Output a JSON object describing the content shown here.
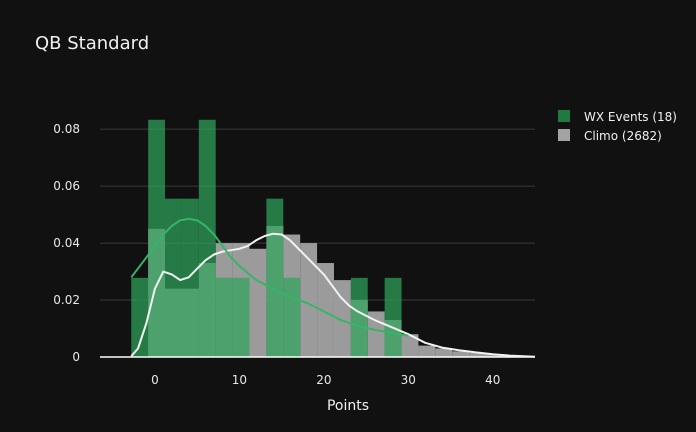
{
  "chart_data": {
    "type": "bar",
    "title": "QB Standard",
    "xlabel": "Points",
    "ylabel": "",
    "xlim": [
      -6.5,
      45
    ],
    "ylim": [
      0,
      0.092
    ],
    "xticks": [
      0,
      10,
      20,
      30,
      40
    ],
    "yticks": [
      0,
      0.02,
      0.04,
      0.06,
      0.08
    ],
    "ytick_labels": [
      "0",
      "0.02",
      "0.04",
      "0.06",
      "0.08"
    ],
    "grid": true,
    "legend_position": "top-right",
    "series": [
      {
        "name": "WX Events (18)",
        "kind": "histogram",
        "color": "#2fa35a",
        "bins": [
          {
            "x0": -2.8,
            "x1": -0.8,
            "y": 0.0278
          },
          {
            "x0": -0.8,
            "x1": 1.2,
            "y": 0.0833
          },
          {
            "x0": 1.2,
            "x1": 3.2,
            "y": 0.0556
          },
          {
            "x0": 3.2,
            "x1": 5.2,
            "y": 0.0556
          },
          {
            "x0": 5.2,
            "x1": 7.2,
            "y": 0.0833
          },
          {
            "x0": 7.2,
            "x1": 9.2,
            "y": 0.0278
          },
          {
            "x0": 9.2,
            "x1": 11.2,
            "y": 0.0278
          },
          {
            "x0": 13.2,
            "x1": 15.2,
            "y": 0.0556
          },
          {
            "x0": 15.2,
            "x1": 17.2,
            "y": 0.0278
          },
          {
            "x0": 23.2,
            "x1": 25.2,
            "y": 0.0278
          },
          {
            "x0": 27.2,
            "x1": 29.2,
            "y": 0.0278
          }
        ],
        "kde": {
          "x": [
            -2.8,
            -1,
            0,
            1,
            2,
            3,
            4,
            5,
            6,
            7,
            8,
            9,
            10,
            12,
            14,
            16,
            18,
            20,
            22,
            24,
            26,
            28,
            30
          ],
          "y": [
            0.028,
            0.035,
            0.039,
            0.043,
            0.046,
            0.048,
            0.0485,
            0.048,
            0.046,
            0.043,
            0.039,
            0.035,
            0.032,
            0.027,
            0.024,
            0.021,
            0.019,
            0.016,
            0.013,
            0.011,
            0.0095,
            0.0085,
            0.0075
          ]
        }
      },
      {
        "name": "Climo (2682)",
        "kind": "histogram",
        "color": "#9e9e9e",
        "bins": [
          {
            "x0": -2.8,
            "x1": -0.8,
            "y": 0.0
          },
          {
            "x0": -0.8,
            "x1": 1.2,
            "y": 0.045
          },
          {
            "x0": 1.2,
            "x1": 3.2,
            "y": 0.024
          },
          {
            "x0": 3.2,
            "x1": 5.2,
            "y": 0.024
          },
          {
            "x0": 5.2,
            "x1": 7.2,
            "y": 0.033
          },
          {
            "x0": 7.2,
            "x1": 9.2,
            "y": 0.04
          },
          {
            "x0": 9.2,
            "x1": 11.2,
            "y": 0.04
          },
          {
            "x0": 11.2,
            "x1": 13.2,
            "y": 0.038
          },
          {
            "x0": 13.2,
            "x1": 15.2,
            "y": 0.046
          },
          {
            "x0": 15.2,
            "x1": 17.2,
            "y": 0.043
          },
          {
            "x0": 17.2,
            "x1": 19.2,
            "y": 0.04
          },
          {
            "x0": 19.2,
            "x1": 21.2,
            "y": 0.033
          },
          {
            "x0": 21.2,
            "x1": 23.2,
            "y": 0.027
          },
          {
            "x0": 23.2,
            "x1": 25.2,
            "y": 0.02
          },
          {
            "x0": 25.2,
            "x1": 27.2,
            "y": 0.016
          },
          {
            "x0": 27.2,
            "x1": 29.2,
            "y": 0.013
          },
          {
            "x0": 29.2,
            "x1": 31.2,
            "y": 0.008
          },
          {
            "x0": 31.2,
            "x1": 33.2,
            "y": 0.004
          },
          {
            "x0": 33.2,
            "x1": 35.2,
            "y": 0.003
          },
          {
            "x0": 35.2,
            "x1": 37.2,
            "y": 0.002
          },
          {
            "x0": 37.2,
            "x1": 39.2,
            "y": 0.0015
          },
          {
            "x0": 39.2,
            "x1": 41.2,
            "y": 0.001
          },
          {
            "x0": 41.2,
            "x1": 43.2,
            "y": 0.0005
          }
        ],
        "kde": {
          "x": [
            -2.8,
            -2,
            -1,
            0,
            1,
            2,
            3,
            4,
            5,
            6,
            7,
            8,
            9,
            10,
            11,
            12,
            13,
            14,
            15,
            16,
            17,
            18,
            19,
            20,
            21,
            22,
            23,
            24,
            26,
            28,
            30,
            32,
            34,
            36,
            38,
            40,
            42,
            44,
            45
          ],
          "y": [
            0.0003,
            0.003,
            0.012,
            0.024,
            0.03,
            0.029,
            0.027,
            0.028,
            0.031,
            0.034,
            0.036,
            0.037,
            0.0375,
            0.038,
            0.039,
            0.041,
            0.0425,
            0.0433,
            0.043,
            0.041,
            0.038,
            0.035,
            0.032,
            0.029,
            0.025,
            0.021,
            0.018,
            0.016,
            0.013,
            0.0105,
            0.008,
            0.005,
            0.0033,
            0.0024,
            0.0016,
            0.001,
            0.0005,
            0.0002,
            0.0001
          ]
        }
      }
    ]
  },
  "page": {
    "title": "QB Standard",
    "xlabel": "Points",
    "legend": [
      "WX Events (18)",
      "Climo (2682)"
    ]
  }
}
